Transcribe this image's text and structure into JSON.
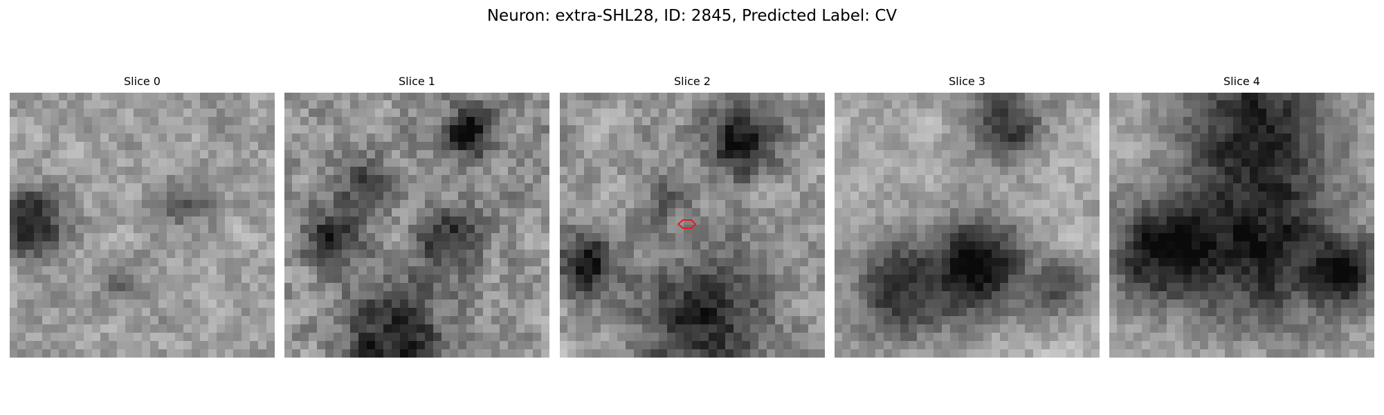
{
  "figure": {
    "title": "Neuron: extra-SHL28, ID: 2845, Predicted Label: CV"
  },
  "colors": {
    "background": "#ffffff",
    "marker": "#e41a1c"
  },
  "slices": [
    {
      "label": "Slice 0",
      "seed": 11,
      "blobs": [
        [
          0.08,
          0.5,
          0.13,
          0.55
        ],
        [
          0.66,
          0.42,
          0.1,
          0.3
        ],
        [
          0.42,
          0.72,
          0.08,
          0.25
        ]
      ],
      "base": 0.62,
      "contrast": 0.9
    },
    {
      "label": "Slice 1",
      "seed": 23,
      "blobs": [
        [
          0.7,
          0.15,
          0.1,
          0.55
        ],
        [
          0.3,
          0.35,
          0.1,
          0.3
        ],
        [
          0.18,
          0.55,
          0.12,
          0.4
        ],
        [
          0.62,
          0.55,
          0.12,
          0.4
        ],
        [
          0.42,
          0.92,
          0.2,
          0.45
        ]
      ],
      "base": 0.58,
      "contrast": 1.1
    },
    {
      "label": "Slice 2",
      "seed": 37,
      "blobs": [
        [
          0.68,
          0.18,
          0.14,
          0.55
        ],
        [
          0.1,
          0.65,
          0.12,
          0.55
        ],
        [
          0.4,
          0.4,
          0.08,
          0.25
        ],
        [
          0.55,
          0.85,
          0.25,
          0.45
        ]
      ],
      "base": 0.6,
      "contrast": 1.0,
      "marker": true
    },
    {
      "label": "Slice 3",
      "seed": 49,
      "blobs": [
        [
          0.65,
          0.12,
          0.15,
          0.45
        ],
        [
          0.55,
          0.65,
          0.18,
          0.6
        ],
        [
          0.25,
          0.75,
          0.2,
          0.45
        ],
        [
          0.85,
          0.75,
          0.1,
          0.35
        ]
      ],
      "base": 0.66,
      "contrast": 0.8
    },
    {
      "label": "Slice 4",
      "seed": 61,
      "blobs": [
        [
          0.55,
          0.1,
          0.3,
          0.5
        ],
        [
          0.2,
          0.6,
          0.2,
          0.55
        ],
        [
          0.6,
          0.6,
          0.3,
          0.5
        ],
        [
          0.9,
          0.68,
          0.12,
          0.45
        ]
      ],
      "base": 0.66,
      "contrast": 0.8
    }
  ]
}
